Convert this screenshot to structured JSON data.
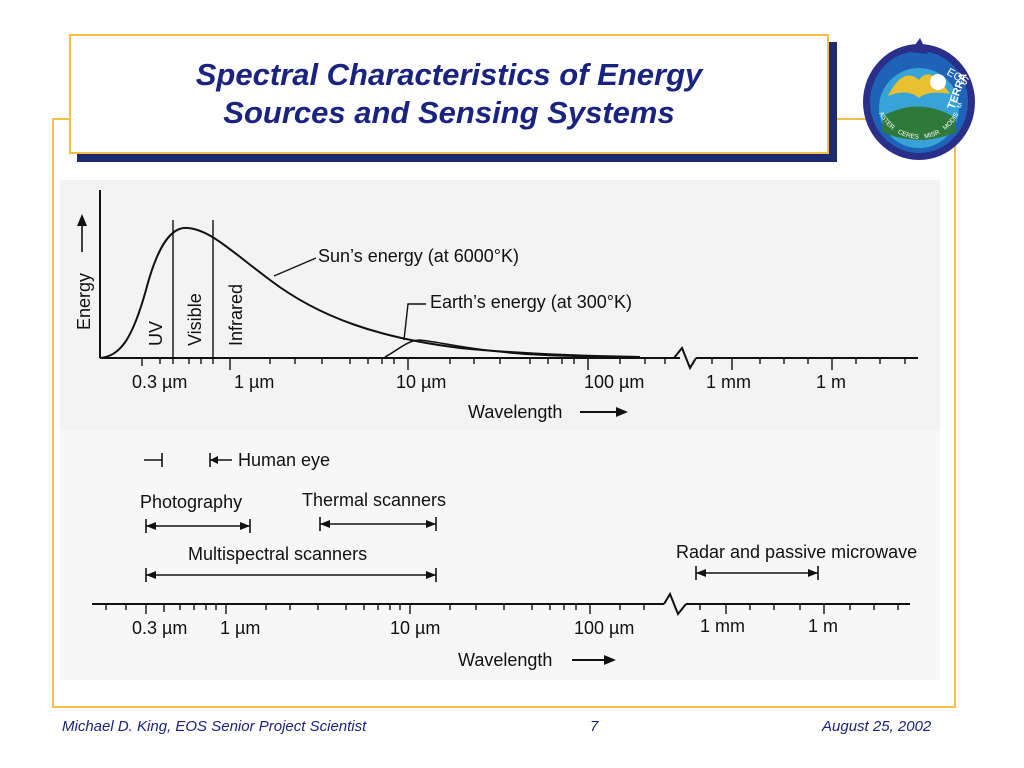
{
  "slide": {
    "title_line1": "Spectral Characteristics of Energy",
    "title_line2": "Sources and Sensing Systems"
  },
  "logo": {
    "icon": "eos-terra-mission-patch-icon",
    "text_eos": "EOS",
    "text_terra": "TERRA",
    "instruments": [
      "ASTER",
      "CERES",
      "MISR",
      "MODIS",
      "MOPITT"
    ]
  },
  "top_panel": {
    "y_axis_label": "Energy",
    "band_labels": [
      "UV",
      "Visible",
      "Infrared"
    ],
    "sun_label": "Sun’s energy (at 6000°K)",
    "earth_label": "Earth’s energy (at 300°K)",
    "tick_labels": [
      "0.3 µm",
      "1 µm",
      "10 µm",
      "100 µm",
      "1 mm",
      "1 m"
    ],
    "x_axis_label": "Wavelength"
  },
  "bottom_panel": {
    "human_eye_label": "Human eye",
    "photography_label": "Photography",
    "thermal_label": "Thermal scanners",
    "multispectral_label": "Multispectral scanners",
    "radar_label": "Radar and passive microwave",
    "tick_labels": [
      "0.3 µm",
      "1 µm",
      "10 µm",
      "100 µm",
      "1 mm",
      "1 m"
    ],
    "x_axis_label": "Wavelength"
  },
  "footer": {
    "author": "Michael D. King, EOS Senior Project Scientist",
    "page_number": "7",
    "date": "August 25, 2002"
  },
  "colors": {
    "title_text": "#1a237e",
    "accent_border": "#f2c04a",
    "title_shadow": "#1c2a6e"
  }
}
